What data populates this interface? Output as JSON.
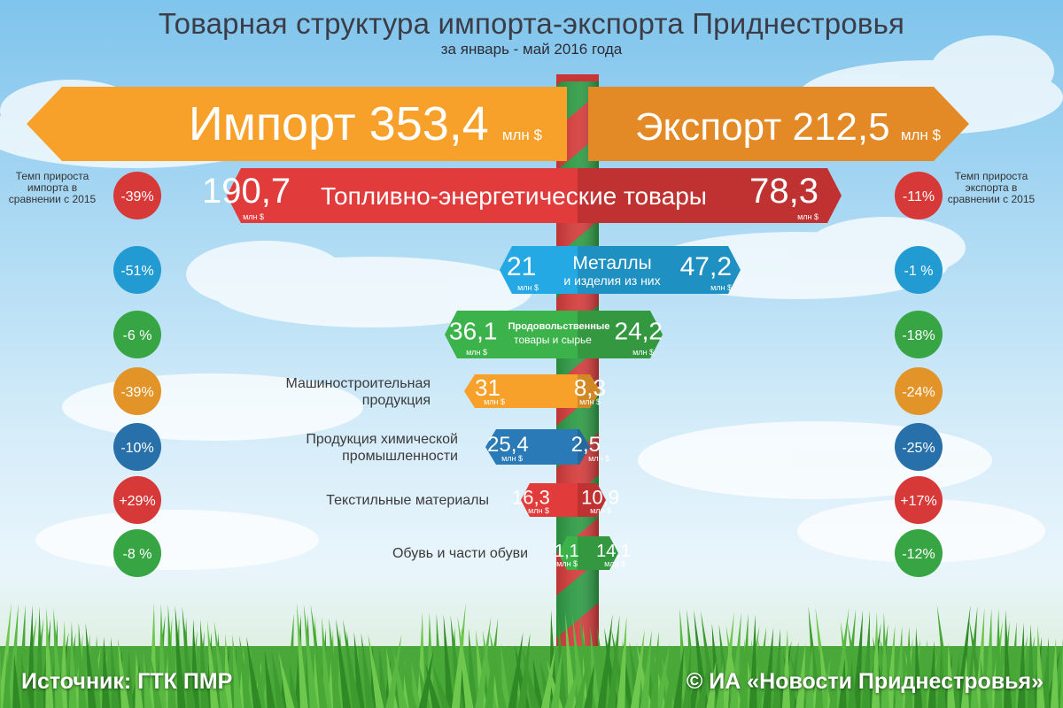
{
  "header": {
    "title": "Товарная структура импорта-экспорта Приднестровья",
    "subtitle": "за январь - май 2016 года"
  },
  "import_total": {
    "label": "Импорт",
    "value": "353,4",
    "unit": "млн $"
  },
  "export_total": {
    "label": "Экспорт",
    "value": "212,5",
    "unit": "млн $"
  },
  "notes": {
    "import": "Темп прироста импорта в сравнении с 2015",
    "export": "Темп прироста экспорта в сравнении с 2015"
  },
  "unit_small": "млн $",
  "chart_data": {
    "type": "bar",
    "categories": [
      "Топливно-энергетические товары",
      "Металлы и изделия из них",
      "Продовольственные товары и сырье",
      "Машиностроительная продукция",
      "Продукция химической промышленности",
      "Текстильные материалы",
      "Обувь и части обуви"
    ],
    "series": [
      {
        "name": "Импорт",
        "values": [
          190.7,
          21,
          36.1,
          31,
          25.4,
          16.3,
          1.1
        ]
      },
      {
        "name": "Экспорт",
        "values": [
          78.3,
          47.2,
          24.2,
          8.3,
          2.5,
          10.9,
          14.1
        ]
      }
    ],
    "value_labels": {
      "import": [
        "190,7",
        "21",
        "36,1",
        "31",
        "25,4",
        "16,3",
        "1,1"
      ],
      "export": [
        "78,3",
        "47,2",
        "24,2",
        "8,3",
        "2,5",
        "10,9",
        "14,1"
      ]
    },
    "growth": {
      "import": [
        "-39%",
        "-51%",
        "-6 %",
        "-39%",
        "-10%",
        "+29%",
        "-8 %"
      ],
      "export": [
        "-11%",
        "-1 %",
        "-18%",
        "-24%",
        "-25%",
        "+17%",
        "-12%"
      ]
    }
  },
  "label_lines": [
    [
      "Топливно-энергетические товары"
    ],
    [
      "Металлы",
      "и изделия из них"
    ],
    [
      "Продовольственные",
      "товары и сырье"
    ],
    [
      "Машиностроительная",
      "продукция"
    ],
    [
      "Продукция химической",
      "промышленности"
    ],
    [
      "Текстильные материалы"
    ],
    [
      "Обувь и части обуви"
    ]
  ],
  "colors": {
    "import_orange": "#f7a12b",
    "export_orange": "#e38a26",
    "fuel": "#e23b3b",
    "metals": "#25a9e4",
    "food": "#3cb34a",
    "machinery": "#f7a12b",
    "chemical": "#2a7ab8",
    "textile": "#e23b3b",
    "footwear": "#3cb34a",
    "pole_red": "#d53b3b",
    "pole_green": "#2e9b45",
    "grass": "#3fa83a"
  },
  "footer": {
    "source": "Источник: ГТК ПМР",
    "copyright": "© ИА «Новости  Приднестровья»"
  }
}
